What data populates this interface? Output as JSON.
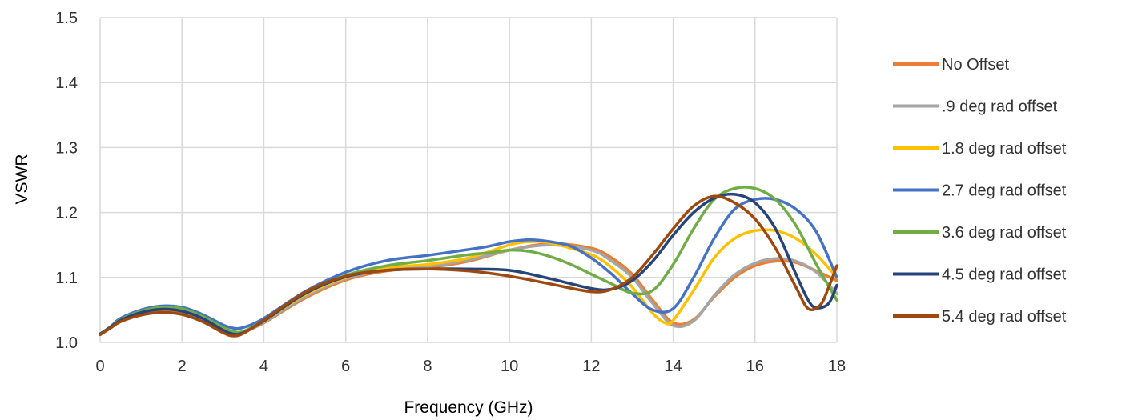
{
  "chart_data": {
    "type": "line",
    "title": "",
    "xlabel": "Frequency (GHz)",
    "ylabel": "VSWR",
    "xlim": [
      0,
      18
    ],
    "ylim": [
      1.0,
      1.5
    ],
    "x_ticks": [
      0,
      2,
      4,
      6,
      8,
      10,
      12,
      14,
      16,
      18
    ],
    "x_tick_labels": [
      "0",
      "2",
      "4",
      "6",
      "8",
      "10",
      "12",
      "14",
      "16",
      "18"
    ],
    "y_ticks": [
      1.0,
      1.1,
      1.2,
      1.3,
      1.4,
      1.5
    ],
    "y_tick_labels": [
      "1.0",
      "1.1",
      "1.2",
      "1.3",
      "1.4",
      "1.5"
    ],
    "grid": "vertical and horizontal",
    "legend_position": "right",
    "series": [
      {
        "name": "No Offset",
        "color": "#ED7D31",
        "x": [
          0,
          0.25,
          0.5,
          1,
          1.5,
          2,
          2.5,
          3,
          3.25,
          3.5,
          4,
          5,
          6,
          7,
          8,
          9,
          10,
          11,
          12,
          12.5,
          13,
          13.5,
          14,
          14.5,
          15,
          15.5,
          16,
          16.5,
          17,
          17.5,
          18
        ],
        "y": [
          1.012,
          1.022,
          1.032,
          1.044,
          1.049,
          1.046,
          1.035,
          1.018,
          1.013,
          1.016,
          1.03,
          1.068,
          1.096,
          1.11,
          1.115,
          1.125,
          1.142,
          1.152,
          1.145,
          1.13,
          1.105,
          1.065,
          1.03,
          1.035,
          1.07,
          1.1,
          1.118,
          1.125,
          1.123,
          1.11,
          1.095
        ]
      },
      {
        "name": ".9 deg rad offset",
        "color": "#A5A5A5",
        "x": [
          0,
          0.25,
          0.5,
          1,
          1.5,
          2,
          2.5,
          3,
          3.25,
          3.5,
          4,
          5,
          6,
          7,
          8,
          9,
          10,
          11,
          12,
          12.5,
          13,
          13.5,
          14,
          14.5,
          15,
          15.5,
          16,
          16.5,
          17,
          17.5,
          18
        ],
        "y": [
          1.012,
          1.022,
          1.033,
          1.046,
          1.051,
          1.048,
          1.036,
          1.019,
          1.014,
          1.016,
          1.031,
          1.07,
          1.098,
          1.112,
          1.117,
          1.127,
          1.142,
          1.15,
          1.142,
          1.125,
          1.1,
          1.06,
          1.026,
          1.033,
          1.072,
          1.104,
          1.122,
          1.129,
          1.125,
          1.108,
          1.075
        ]
      },
      {
        "name": "1.8 deg rad offset",
        "color": "#FFC000",
        "x": [
          0,
          0.25,
          0.5,
          1,
          1.5,
          2,
          2.5,
          3,
          3.25,
          3.5,
          4,
          5,
          6,
          7,
          8,
          9,
          10,
          10.5,
          11,
          12,
          12.5,
          13,
          13.5,
          13.8,
          14,
          14.5,
          15,
          15.5,
          16,
          16.5,
          17,
          17.5,
          18
        ],
        "y": [
          1.013,
          1.023,
          1.035,
          1.048,
          1.053,
          1.05,
          1.038,
          1.021,
          1.015,
          1.017,
          1.033,
          1.073,
          1.1,
          1.115,
          1.12,
          1.13,
          1.15,
          1.155,
          1.153,
          1.135,
          1.115,
          1.085,
          1.045,
          1.03,
          1.034,
          1.08,
          1.13,
          1.16,
          1.172,
          1.172,
          1.16,
          1.135,
          1.1
        ]
      },
      {
        "name": "2.7 deg rad offset",
        "color": "#4472C4",
        "x": [
          0,
          0.25,
          0.5,
          1,
          1.5,
          2,
          2.5,
          3,
          3.25,
          3.5,
          4,
          5,
          6,
          7,
          8,
          9,
          9.5,
          10,
          10.5,
          11,
          11.5,
          12,
          12.5,
          13,
          13.5,
          14,
          14.5,
          15,
          15.5,
          16,
          16.5,
          17,
          17.5,
          18
        ],
        "y": [
          1.013,
          1.024,
          1.037,
          1.05,
          1.056,
          1.054,
          1.043,
          1.027,
          1.022,
          1.023,
          1.037,
          1.078,
          1.108,
          1.126,
          1.134,
          1.143,
          1.148,
          1.155,
          1.158,
          1.155,
          1.148,
          1.13,
          1.105,
          1.075,
          1.05,
          1.052,
          1.1,
          1.16,
          1.205,
          1.22,
          1.22,
          1.205,
          1.17,
          1.1
        ]
      },
      {
        "name": "3.6 deg rad offset",
        "color": "#70AD47",
        "x": [
          0,
          0.25,
          0.5,
          1,
          1.5,
          2,
          2.5,
          3,
          3.25,
          3.5,
          4,
          5,
          6,
          7,
          8,
          9,
          9.5,
          10,
          10.5,
          11,
          11.5,
          12,
          12.5,
          13,
          13.5,
          14,
          14.5,
          15,
          15.5,
          16,
          16.5,
          17,
          17.5,
          18
        ],
        "y": [
          1.013,
          1.023,
          1.035,
          1.048,
          1.054,
          1.052,
          1.04,
          1.023,
          1.017,
          1.017,
          1.034,
          1.075,
          1.103,
          1.118,
          1.126,
          1.135,
          1.138,
          1.142,
          1.14,
          1.132,
          1.12,
          1.105,
          1.09,
          1.076,
          1.08,
          1.12,
          1.175,
          1.22,
          1.237,
          1.237,
          1.22,
          1.18,
          1.12,
          1.065
        ]
      },
      {
        "name": "4.5 deg rad offset",
        "color": "#264478",
        "x": [
          0,
          0.25,
          0.5,
          1,
          1.5,
          2,
          2.5,
          3,
          3.25,
          3.5,
          4,
          5,
          6,
          7,
          8,
          9,
          10,
          11,
          12,
          12.5,
          13,
          13.5,
          14,
          14.5,
          15,
          15.5,
          16,
          16.5,
          17,
          17.3,
          17.5,
          17.8,
          18
        ],
        "y": [
          1.013,
          1.023,
          1.034,
          1.046,
          1.051,
          1.048,
          1.037,
          1.019,
          1.013,
          1.015,
          1.033,
          1.075,
          1.101,
          1.111,
          1.113,
          1.113,
          1.111,
          1.098,
          1.083,
          1.082,
          1.095,
          1.125,
          1.165,
          1.2,
          1.222,
          1.228,
          1.215,
          1.175,
          1.105,
          1.065,
          1.053,
          1.06,
          1.088
        ]
      },
      {
        "name": "5.4 deg rad offset",
        "color": "#9E480E",
        "x": [
          0,
          0.25,
          0.5,
          1,
          1.5,
          2,
          2.5,
          3,
          3.25,
          3.5,
          4,
          5,
          6,
          7,
          8,
          9,
          10,
          11,
          12,
          12.5,
          13,
          13.5,
          14,
          14.5,
          15,
          15.5,
          16,
          16.5,
          17,
          17.3,
          17.6,
          17.8,
          18
        ],
        "y": [
          1.012,
          1.022,
          1.032,
          1.042,
          1.046,
          1.043,
          1.032,
          1.015,
          1.01,
          1.014,
          1.034,
          1.077,
          1.102,
          1.111,
          1.113,
          1.11,
          1.102,
          1.09,
          1.078,
          1.082,
          1.1,
          1.135,
          1.175,
          1.21,
          1.225,
          1.215,
          1.19,
          1.145,
          1.085,
          1.052,
          1.058,
          1.085,
          1.118
        ]
      }
    ]
  }
}
